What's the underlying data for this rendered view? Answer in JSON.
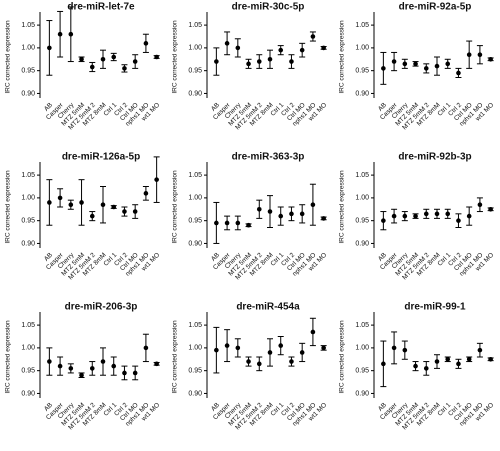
{
  "chart_data": [
    {
      "type": "errorbar",
      "title": "dre-miR-let-7e",
      "ylabel": "IRC corrected expression",
      "categories": [
        "AB",
        "Casper",
        "Cherry",
        "MTZ 5mM",
        "MTZ 5mM 2",
        "MTZ 8mM",
        "Ctrl 1",
        "Ctrl 2",
        "Ctrl MO",
        "nphs1 MO",
        "wt1 MO"
      ],
      "values": [
        1.0,
        1.03,
        1.03,
        0.975,
        0.958,
        0.975,
        0.98,
        0.955,
        0.97,
        1.01,
        0.98
      ],
      "errors": [
        0.06,
        0.05,
        0.06,
        0.005,
        0.01,
        0.02,
        0.008,
        0.008,
        0.015,
        0.02,
        0.003
      ],
      "color": "#000000",
      "ylim": [
        0.89,
        1.07
      ],
      "yticks": [
        {
          "value": 0.9,
          "label": "0.90"
        },
        0.95,
        {
          "value": 1.0,
          "label": "1.00"
        },
        1.05
      ]
    },
    {
      "type": "errorbar",
      "title": "dre-miR-30c-5p",
      "ylabel": "IRC corrected expression",
      "categories": [
        "AB",
        "Casper",
        "Cherry",
        "MTZ 5mM",
        "MTZ 5mM 2",
        "MTZ 8mM",
        "Ctrl 1",
        "Ctrl 2",
        "Ctrl MO",
        "nphs1 MO",
        "wt1 MO"
      ],
      "values": [
        0.97,
        1.01,
        1.0,
        0.965,
        0.97,
        0.975,
        0.995,
        0.97,
        0.995,
        1.025,
        1.0
      ],
      "errors": [
        0.03,
        0.025,
        0.02,
        0.01,
        0.015,
        0.02,
        0.01,
        0.015,
        0.015,
        0.01,
        0.003
      ],
      "color": "#000000",
      "ylim": [
        0.89,
        1.07
      ],
      "yticks": [
        {
          "value": 0.9,
          "label": "0.90"
        },
        0.95,
        {
          "value": 1.0,
          "label": "1.00"
        },
        1.05
      ]
    },
    {
      "type": "errorbar",
      "title": "dre-miR-92a-5p",
      "ylabel": "IRC corrected expression",
      "categories": [
        "AB",
        "Casper",
        "Cherry",
        "MTZ 5mM",
        "MTZ 5mM 2",
        "MTZ 8mM",
        "Ctrl 1",
        "Ctrl 2",
        "Ctrl MO",
        "nphs1 MO",
        "wt1 MO"
      ],
      "values": [
        0.955,
        0.97,
        0.965,
        0.965,
        0.955,
        0.96,
        0.965,
        0.945,
        0.985,
        0.985,
        0.975
      ],
      "errors": [
        0.035,
        0.02,
        0.01,
        0.005,
        0.01,
        0.02,
        0.01,
        0.01,
        0.03,
        0.02,
        0.003
      ],
      "color": "#000000",
      "ylim": [
        0.89,
        1.07
      ],
      "yticks": [
        {
          "value": 0.9,
          "label": "0.90"
        },
        0.95,
        {
          "value": 1.0,
          "label": "1.00"
        },
        1.05
      ]
    },
    {
      "type": "errorbar",
      "title": "dre-miR-126a-5p",
      "ylabel": "IRC corrected expression",
      "categories": [
        "AB",
        "Casper",
        "Cherry",
        "MTZ 5mM",
        "MTZ 5mM 2",
        "MTZ 8mM",
        "Ctrl 1",
        "Ctrl 2",
        "Ctrl MO",
        "nphs1 MO",
        "wt1 MO"
      ],
      "values": [
        0.99,
        1.0,
        0.985,
        0.99,
        0.96,
        0.985,
        0.98,
        0.97,
        0.97,
        1.01,
        1.04
      ],
      "errors": [
        0.05,
        0.02,
        0.01,
        0.05,
        0.01,
        0.04,
        0.003,
        0.01,
        0.015,
        0.015,
        0.05
      ],
      "color": "#000000",
      "ylim": [
        0.89,
        1.07
      ],
      "yticks": [
        {
          "value": 0.9,
          "label": "0.90"
        },
        0.95,
        {
          "value": 1.0,
          "label": "1.00"
        },
        1.05
      ]
    },
    {
      "type": "errorbar",
      "title": "dre-miR-363-3p",
      "ylabel": "IRC corrected expression",
      "categories": [
        "AB",
        "Casper",
        "Cherry",
        "MTZ 5mM",
        "MTZ 5mM 2",
        "MTZ 8mM",
        "Ctrl 1",
        "Ctrl 2",
        "Ctrl MO",
        "nphs1 MO",
        "wt1 MO"
      ],
      "values": [
        0.945,
        0.945,
        0.945,
        0.94,
        0.975,
        0.97,
        0.96,
        0.965,
        0.965,
        0.985,
        0.955
      ],
      "errors": [
        0.045,
        0.015,
        0.015,
        0.003,
        0.02,
        0.035,
        0.02,
        0.015,
        0.02,
        0.045,
        0.003
      ],
      "color": "#000000",
      "ylim": [
        0.89,
        1.07
      ],
      "yticks": [
        {
          "value": 0.9,
          "label": "0.90"
        },
        0.95,
        {
          "value": 1.0,
          "label": "1.00"
        },
        1.05
      ]
    },
    {
      "type": "errorbar",
      "title": "dre-miR-92b-3p",
      "ylabel": "IRC corrected expression",
      "categories": [
        "AB",
        "Casper",
        "Cherry",
        "MTZ 5mM",
        "MTZ 5mM 2",
        "MTZ 8mM",
        "Ctrl 1",
        "Ctrl 2",
        "Ctrl MO",
        "nphs1 MO",
        "wt1 MO"
      ],
      "values": [
        0.95,
        0.96,
        0.96,
        0.96,
        0.965,
        0.965,
        0.965,
        0.95,
        0.96,
        0.985,
        0.975
      ],
      "errors": [
        0.02,
        0.015,
        0.01,
        0.005,
        0.01,
        0.01,
        0.01,
        0.015,
        0.02,
        0.015,
        0.003
      ],
      "color": "#000000",
      "ylim": [
        0.89,
        1.07
      ],
      "yticks": [
        {
          "value": 0.9,
          "label": "0.90"
        },
        0.95,
        {
          "value": 1.0,
          "label": "1.00"
        },
        1.05
      ]
    },
    {
      "type": "errorbar",
      "title": "dre-miR-206-3p",
      "ylabel": "IRC corrected expression",
      "categories": [
        "AB",
        "Casper",
        "Cherry",
        "MTZ 5mM",
        "MTZ 5mM 2",
        "MTZ 8mM",
        "Ctrl 1",
        "Ctrl 2",
        "Ctrl MO",
        "nphs1 MO",
        "wt1 MO"
      ],
      "values": [
        0.97,
        0.96,
        0.955,
        0.94,
        0.955,
        0.97,
        0.96,
        0.945,
        0.945,
        1.0,
        0.965
      ],
      "errors": [
        0.03,
        0.02,
        0.01,
        0.005,
        0.015,
        0.03,
        0.02,
        0.015,
        0.015,
        0.03,
        0.003
      ],
      "color": "#000000",
      "ylim": [
        0.89,
        1.07
      ],
      "yticks": [
        {
          "value": 0.9,
          "label": "0.90"
        },
        0.95,
        {
          "value": 1.0,
          "label": "1.00"
        },
        1.05
      ]
    },
    {
      "type": "errorbar",
      "title": "dre-miR-454a",
      "ylabel": "IRC corrected expression",
      "categories": [
        "AB",
        "Casper",
        "Cherry",
        "MTZ 5mM",
        "MTZ 5mM 2",
        "MTZ 8mM",
        "Ctrl 1",
        "Ctrl 2",
        "Ctrl MO",
        "nphs1 MO",
        "wt1 MO"
      ],
      "values": [
        0.995,
        1.005,
        1.0,
        0.97,
        0.965,
        0.99,
        1.005,
        0.97,
        0.99,
        1.035,
        1.0
      ],
      "errors": [
        0.05,
        0.035,
        0.02,
        0.01,
        0.015,
        0.03,
        0.02,
        0.01,
        0.02,
        0.03,
        0.005
      ],
      "color": "#000000",
      "ylim": [
        0.89,
        1.07
      ],
      "yticks": [
        {
          "value": 0.9,
          "label": "0.90"
        },
        0.95,
        {
          "value": 1.0,
          "label": "1.00"
        },
        1.05
      ]
    },
    {
      "type": "errorbar",
      "title": "dre-miR-99-1",
      "ylabel": "IRC corrected expression",
      "categories": [
        "AB",
        "Casper",
        "Cherry",
        "MTZ 5mM",
        "MTZ 5mM 2",
        "MTZ 8mM",
        "Ctrl 1",
        "Ctrl 2",
        "Ctrl MO",
        "nphs1 MO",
        "wt1 MO"
      ],
      "values": [
        0.965,
        1.0,
        0.995,
        0.96,
        0.955,
        0.97,
        0.975,
        0.965,
        0.975,
        0.995,
        0.975
      ],
      "errors": [
        0.05,
        0.035,
        0.02,
        0.01,
        0.015,
        0.015,
        0.005,
        0.01,
        0.005,
        0.015,
        0.003
      ],
      "color": "#000000",
      "ylim": [
        0.89,
        1.07
      ],
      "yticks": [
        {
          "value": 0.9,
          "label": "0.90"
        },
        0.95,
        {
          "value": 1.0,
          "label": "1.00"
        },
        1.05
      ]
    }
  ]
}
